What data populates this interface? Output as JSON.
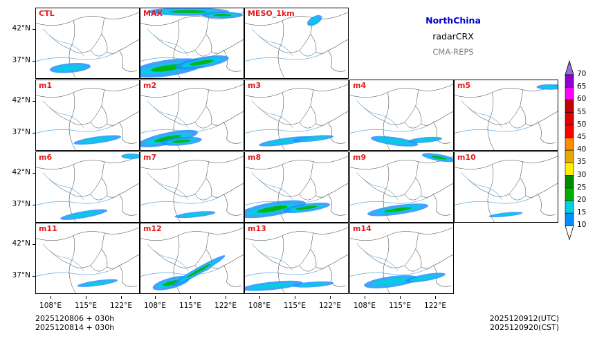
{
  "header": {
    "region": "NorthChina",
    "variable": "radarCRX",
    "system": "CMA-REPS"
  },
  "panels": [
    {
      "label": "CTL"
    },
    {
      "label": "MAX"
    },
    {
      "label": "MESO_1km"
    },
    {
      "label": "m1"
    },
    {
      "label": "m2"
    },
    {
      "label": "m3"
    },
    {
      "label": "m4"
    },
    {
      "label": "m5"
    },
    {
      "label": "m6"
    },
    {
      "label": "m7"
    },
    {
      "label": "m8"
    },
    {
      "label": "m9"
    },
    {
      "label": "m10"
    },
    {
      "label": "m11"
    },
    {
      "label": "m12"
    },
    {
      "label": "m13"
    },
    {
      "label": "m14"
    }
  ],
  "axes": {
    "lat_ticks": [
      "42°N",
      "37°N"
    ],
    "lon_ticks": [
      "108°E",
      "115°E",
      "122°E"
    ]
  },
  "colorbar": {
    "levels": [
      "70",
      "65",
      "60",
      "55",
      "50",
      "45",
      "40",
      "35",
      "30",
      "25",
      "20",
      "15",
      "10"
    ],
    "colors": [
      "#9400d3",
      "#ff00ff",
      "#c00000",
      "#e00000",
      "#ff0000",
      "#ff8c00",
      "#e8a800",
      "#ffee00",
      "#008a00",
      "#00b000",
      "#00d0e0",
      "#0090ff"
    ]
  },
  "footer": {
    "init_utc": "2025120806  +  030h",
    "init_cst": "2025120814  +  030h",
    "valid_utc": "2025120912(UTC)",
    "valid_cst": "2025120920(CST)"
  }
}
